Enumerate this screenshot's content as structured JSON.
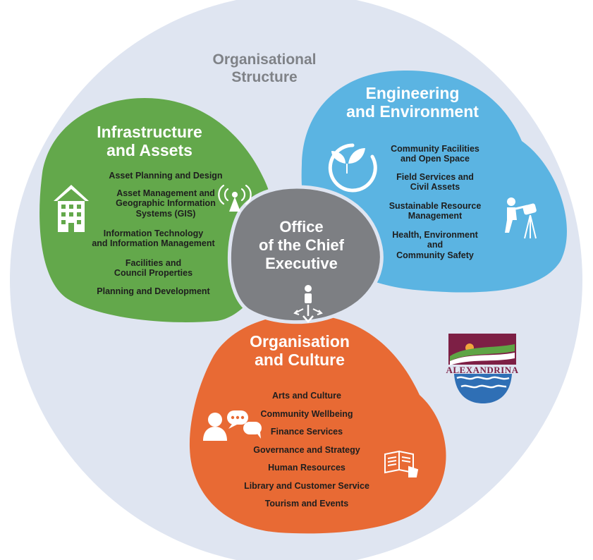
{
  "title_lines": [
    "Organisational",
    "Structure"
  ],
  "infrastructure": {
    "title_lines": [
      "Infrastructure",
      "and Assets"
    ],
    "color": "#63a84b",
    "items": [
      {
        "lines": [
          "Asset Planning and Design"
        ]
      },
      {
        "lines": [
          "Asset Management and",
          "Geographic Information",
          "Systems (GIS)"
        ]
      },
      {
        "lines": [
          "Information Technology",
          "and Information Management"
        ]
      },
      {
        "lines": [
          "Facilities and",
          "Council Properties"
        ]
      },
      {
        "lines": [
          "Planning and Development"
        ]
      }
    ],
    "icons": [
      "building-icon",
      "radio-tower-icon"
    ]
  },
  "engineering": {
    "title_lines": [
      "Engineering",
      "and Environment"
    ],
    "color": "#5bb4e2",
    "items": [
      {
        "lines": [
          "Community Facilities",
          "and Open Space"
        ]
      },
      {
        "lines": [
          "Field Services and",
          "Civil Assets"
        ]
      },
      {
        "lines": [
          "Sustainable Resource",
          "Management"
        ]
      },
      {
        "lines": [
          "Health, Environment",
          "and",
          "Community Safety"
        ]
      }
    ],
    "icons": [
      "leaf-circle-icon",
      "surveyor-icon"
    ]
  },
  "office": {
    "title_lines": [
      "Office",
      "of the Chief",
      "Executive"
    ],
    "color": "#7d7f83",
    "icons": [
      "person-arrows-icon"
    ]
  },
  "organisation": {
    "title_lines": [
      "Organisation",
      "and Culture"
    ],
    "color": "#e86a34",
    "items": [
      {
        "lines": [
          "Arts and Culture"
        ]
      },
      {
        "lines": [
          "Community Wellbeing"
        ]
      },
      {
        "lines": [
          "Finance Services"
        ]
      },
      {
        "lines": [
          "Governance and Strategy"
        ]
      },
      {
        "lines": [
          "Human Resources"
        ]
      },
      {
        "lines": [
          "Library and Customer Service"
        ]
      },
      {
        "lines": [
          "Tourism and Events"
        ]
      }
    ],
    "icons": [
      "chat-people-icon",
      "book-touch-icon"
    ]
  },
  "logo": {
    "text": "ALEXANDRINA",
    "icon": "alexandrina-logo-icon",
    "colors": {
      "maroon": "#7d1f45",
      "green": "#5ea444",
      "blue": "#2f6fb5",
      "sun": "#f0a63c"
    }
  },
  "colors": {
    "background_circle": "#dfe5f1",
    "title_gray": "#7f8287"
  }
}
